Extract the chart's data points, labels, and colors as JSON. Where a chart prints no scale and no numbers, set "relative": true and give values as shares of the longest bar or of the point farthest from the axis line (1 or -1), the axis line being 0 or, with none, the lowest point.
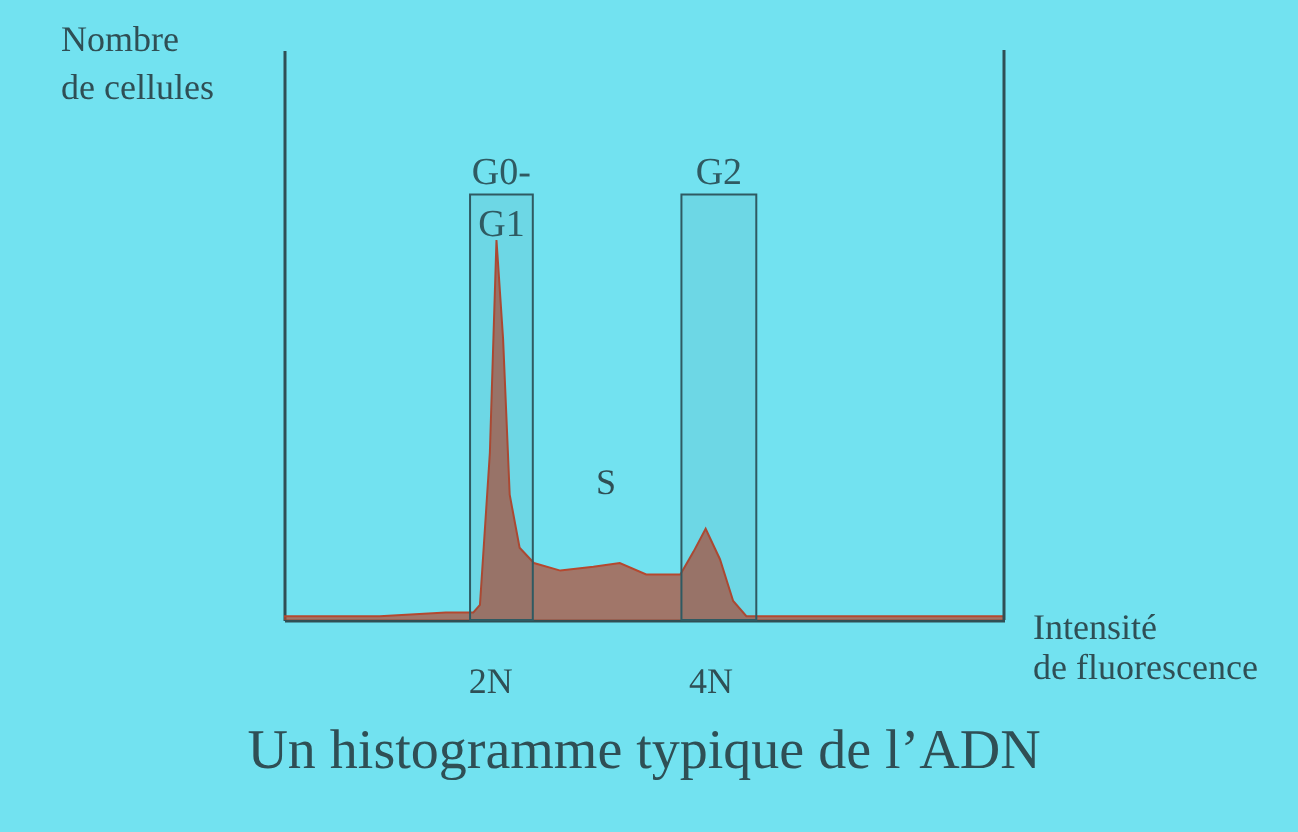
{
  "chart_data": {
    "type": "area",
    "title": "Un histogramme typique de l’ADN",
    "xlabel": "Intensité de fluorescence",
    "ylabel": "Nombre de cellules",
    "relative": true,
    "x": [
      0.13,
      1.0,
      1.6,
      1.85,
      1.91,
      2.0,
      2.06,
      2.12,
      2.18,
      2.27,
      2.4,
      2.64,
      2.94,
      3.18,
      3.42,
      3.73,
      3.85,
      3.96,
      4.09,
      4.21,
      4.33,
      5.0,
      6.0,
      6.67
    ],
    "series": [
      {
        "color": "#b5482f",
        "values": [
          0.01,
          0.01,
          0.02,
          0.02,
          0.04,
          0.44,
          1.0,
          0.74,
          0.33,
          0.19,
          0.15,
          0.13,
          0.14,
          0.15,
          0.12,
          0.12,
          0.18,
          0.24,
          0.16,
          0.05,
          0.01,
          0.01,
          0.01,
          0.01
        ]
      }
    ],
    "xlim": [
      0.13,
      6.67
    ],
    "xticks": [
      {
        "value": 2,
        "label": "2N"
      },
      {
        "value": 4,
        "label": "4N"
      }
    ],
    "bands": [
      {
        "axis": "x",
        "from": 1.82,
        "to": 2.39,
        "label": "G0-G1",
        "color": "#2f5a62"
      },
      {
        "axis": "x",
        "from": 3.74,
        "to": 4.42,
        "label": "G2",
        "color": "#2f5a62"
      }
    ],
    "annotations": [
      "S"
    ],
    "grid": false
  }
}
